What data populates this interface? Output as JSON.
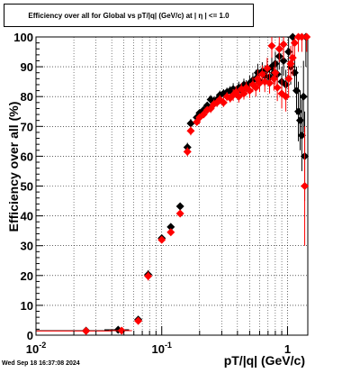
{
  "chart_data": {
    "type": "scatter",
    "title": "Efficiency over all for Global vs pT/|q| (GeV/c) at |  η  | <= 1.0",
    "xlabel": "pT/|q| (GeV/c)",
    "ylabel": "Efficiency over all (%)",
    "xscale": "log",
    "xlim": [
      0.01,
      1.45
    ],
    "ylim": [
      0,
      100
    ],
    "x_tick_labels": [
      "10^-2",
      "10^-1",
      "1"
    ],
    "y_tick_labels": [
      "0",
      "10",
      "20",
      "30",
      "40",
      "50",
      "60",
      "70",
      "80",
      "90",
      "100"
    ],
    "grid": true,
    "series": [
      {
        "color": "#000000",
        "marker": "diamond",
        "points": [
          [
            0.025,
            1.5,
            0.015,
            0.8
          ],
          [
            0.045,
            1.8,
            0.01,
            0.8
          ],
          [
            0.065,
            5.2,
            0.004,
            1.2
          ],
          [
            0.078,
            20.3,
            0.003,
            1.5
          ],
          [
            0.1,
            32.5,
            0.005,
            1.0
          ],
          [
            0.118,
            36.3,
            0.006,
            1.0
          ],
          [
            0.14,
            43.2,
            0.006,
            1.2
          ],
          [
            0.16,
            63.0,
            0.004,
            1.5
          ],
          [
            0.17,
            71.0,
            0.005,
            1.5
          ],
          [
            0.19,
            73.0,
            0.005,
            1.2
          ],
          [
            0.2,
            74.5,
            0.005,
            1.2
          ],
          [
            0.215,
            75.5,
            0.005,
            1.2
          ],
          [
            0.23,
            77.0,
            0.005,
            1.2
          ],
          [
            0.245,
            79.0,
            0.005,
            1.5
          ],
          [
            0.26,
            78.5,
            0.005,
            1.5
          ],
          [
            0.275,
            79.0,
            0.005,
            1.5
          ],
          [
            0.29,
            80.5,
            0.005,
            1.5
          ],
          [
            0.31,
            81.0,
            0.005,
            1.5
          ],
          [
            0.33,
            81.5,
            0.005,
            1.5
          ],
          [
            0.35,
            82.0,
            0.005,
            1.5
          ],
          [
            0.37,
            82.5,
            0.005,
            2.0
          ],
          [
            0.39,
            81.5,
            0.005,
            2.0
          ],
          [
            0.41,
            83.0,
            0.005,
            2.0
          ],
          [
            0.43,
            82.0,
            0.005,
            2.0
          ],
          [
            0.45,
            84.0,
            0.005,
            2.0
          ],
          [
            0.47,
            83.5,
            0.005,
            2.0
          ],
          [
            0.5,
            84.5,
            0.01,
            2.5
          ],
          [
            0.53,
            85.5,
            0.01,
            2.5
          ],
          [
            0.56,
            86.0,
            0.01,
            3.0
          ],
          [
            0.58,
            88.0,
            0.01,
            3.0
          ],
          [
            0.6,
            85.0,
            0.01,
            3.0
          ],
          [
            0.63,
            88.5,
            0.01,
            3.0
          ],
          [
            0.66,
            87.0,
            0.01,
            3.5
          ],
          [
            0.69,
            89.0,
            0.01,
            3.5
          ],
          [
            0.72,
            86.5,
            0.01,
            3.5
          ],
          [
            0.75,
            90.0,
            0.01,
            4.0
          ],
          [
            0.78,
            88.0,
            0.01,
            4.0
          ],
          [
            0.8,
            91.0,
            0.01,
            4.0
          ],
          [
            0.83,
            87.5,
            0.01,
            4.5
          ],
          [
            0.86,
            93.5,
            0.01,
            4.5
          ],
          [
            0.9,
            85.0,
            0.01,
            5.0
          ],
          [
            0.93,
            92.0,
            0.01,
            5.0
          ],
          [
            0.97,
            84.0,
            0.01,
            5.0
          ],
          [
            1.02,
            95.0,
            0.015,
            5.0
          ],
          [
            1.06,
            90.0,
            0.015,
            6.0
          ],
          [
            1.1,
            100.0,
            0.015,
            3.0
          ],
          [
            1.14,
            88.0,
            0.015,
            6.0
          ],
          [
            1.18,
            82.0,
            0.015,
            8.0
          ],
          [
            1.22,
            75.0,
            0.015,
            10.0
          ],
          [
            1.26,
            72.0,
            0.015,
            10.0
          ],
          [
            1.3,
            67.0,
            0.015,
            12.0
          ],
          [
            1.34,
            80.0,
            0.015,
            12.0
          ],
          [
            1.37,
            60.0,
            0.015,
            15.0
          ],
          [
            1.4,
            100.0,
            0.015,
            10.0
          ]
        ]
      },
      {
        "color": "#ff0000",
        "marker": "diamond",
        "points": [
          [
            0.025,
            1.4,
            0.015,
            0.8
          ],
          [
            0.048,
            1.5,
            0.01,
            0.8
          ],
          [
            0.065,
            4.8,
            0.004,
            1.2
          ],
          [
            0.078,
            19.8,
            0.003,
            1.5
          ],
          [
            0.1,
            32.0,
            0.005,
            1.0
          ],
          [
            0.118,
            34.5,
            0.006,
            1.0
          ],
          [
            0.14,
            40.8,
            0.006,
            1.2
          ],
          [
            0.16,
            61.5,
            0.004,
            1.5
          ],
          [
            0.17,
            68.5,
            0.005,
            1.5
          ],
          [
            0.19,
            71.5,
            0.005,
            1.2
          ],
          [
            0.2,
            73.0,
            0.005,
            1.2
          ],
          [
            0.215,
            74.0,
            0.005,
            1.2
          ],
          [
            0.23,
            75.5,
            0.005,
            1.2
          ],
          [
            0.245,
            76.0,
            0.005,
            1.5
          ],
          [
            0.26,
            77.5,
            0.005,
            1.5
          ],
          [
            0.275,
            78.0,
            0.005,
            1.5
          ],
          [
            0.29,
            79.0,
            0.005,
            1.5
          ],
          [
            0.31,
            78.0,
            0.005,
            1.5
          ],
          [
            0.33,
            80.0,
            0.005,
            1.5
          ],
          [
            0.35,
            79.5,
            0.005,
            1.5
          ],
          [
            0.37,
            80.5,
            0.005,
            2.0
          ],
          [
            0.39,
            81.5,
            0.005,
            2.0
          ],
          [
            0.41,
            80.0,
            0.005,
            2.0
          ],
          [
            0.43,
            82.5,
            0.005,
            2.0
          ],
          [
            0.45,
            81.0,
            0.005,
            2.0
          ],
          [
            0.47,
            83.0,
            0.005,
            2.0
          ],
          [
            0.5,
            82.0,
            0.01,
            2.5
          ],
          [
            0.53,
            84.0,
            0.01,
            2.5
          ],
          [
            0.56,
            83.0,
            0.01,
            3.0
          ],
          [
            0.58,
            86.0,
            0.01,
            3.0
          ],
          [
            0.6,
            84.5,
            0.01,
            3.0
          ],
          [
            0.63,
            87.5,
            0.01,
            3.0
          ],
          [
            0.66,
            85.0,
            0.01,
            3.5
          ],
          [
            0.69,
            89.5,
            0.01,
            3.5
          ],
          [
            0.72,
            84.5,
            0.01,
            3.5
          ],
          [
            0.75,
            97.0,
            0.01,
            4.0
          ],
          [
            0.78,
            86.0,
            0.01,
            4.0
          ],
          [
            0.8,
            88.0,
            0.01,
            4.0
          ],
          [
            0.83,
            83.0,
            0.01,
            4.5
          ],
          [
            0.86,
            96.0,
            0.01,
            4.5
          ],
          [
            0.9,
            81.0,
            0.01,
            5.0
          ],
          [
            0.93,
            97.5,
            0.01,
            5.0
          ],
          [
            0.97,
            80.0,
            0.01,
            5.0
          ],
          [
            1.02,
            86.0,
            0.015,
            6.0
          ],
          [
            1.06,
            91.0,
            0.015,
            6.0
          ],
          [
            1.1,
            93.0,
            0.015,
            6.0
          ],
          [
            1.14,
            98.0,
            0.015,
            6.0
          ],
          [
            1.22,
            100.0,
            0.015,
            5.0
          ],
          [
            1.3,
            100.0,
            0.015,
            5.0
          ],
          [
            1.37,
            50.0,
            0.015,
            20.0
          ],
          [
            1.42,
            100.0,
            0.015,
            5.0
          ]
        ]
      }
    ]
  },
  "footer": {
    "timestamp": "Wed Sep 18 16:37:08 2024"
  }
}
